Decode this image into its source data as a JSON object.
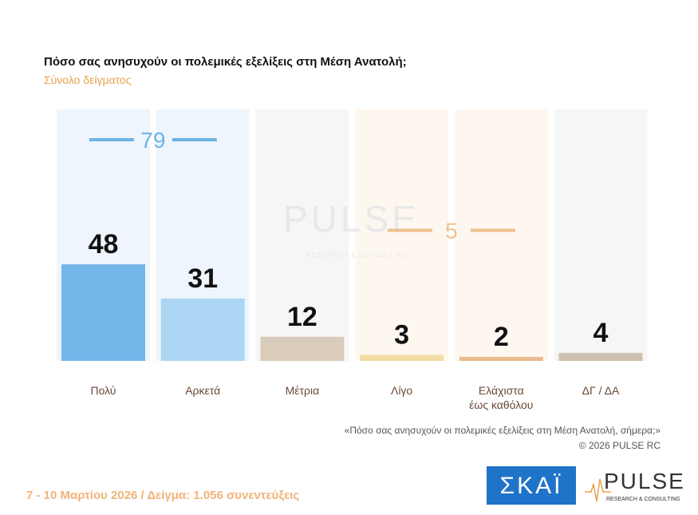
{
  "chart_data": {
    "type": "bar",
    "title": "Πόσο σας ανησυχούν οι πολεμικές εξελίξεις στη Μέση Ανατολή;",
    "subtitle": "Σύνολο δείγματος",
    "categories": [
      "Πολύ",
      "Αρκετά",
      "Μέτρια",
      "Λίγο",
      "Ελάχιστα\nέως καθόλου",
      "ΔΓ / ΔΑ"
    ],
    "values": [
      48,
      31,
      12,
      3,
      2,
      4
    ],
    "colors": [
      "#72b6ea",
      "#acd5f3",
      "#d9ccba",
      "#f1dca4",
      "#ebb98c",
      "#cfc1b0"
    ],
    "groups": [
      {
        "total": 79,
        "members": [
          0,
          1
        ],
        "color": "#6eb2e6"
      },
      {
        "total": 5,
        "members": [
          3,
          4
        ],
        "color": "#eec28f"
      }
    ],
    "note": "«Πόσο σας ανησυχούν οι πολεμικές εξελίξεις στη Μέση Ανατολή, σήμερα;»",
    "copyright": "©  2026  PULSE RC",
    "footer": "7 - 10  Μαρτίου 2026  /  Δείγμα:  1.056 συνεντεύξεις",
    "logo_skai": "ΣΚΑΪ",
    "logo_pulse": "PULSE",
    "logo_pulse_sub": "RESEARCH & CONSULTING"
  }
}
